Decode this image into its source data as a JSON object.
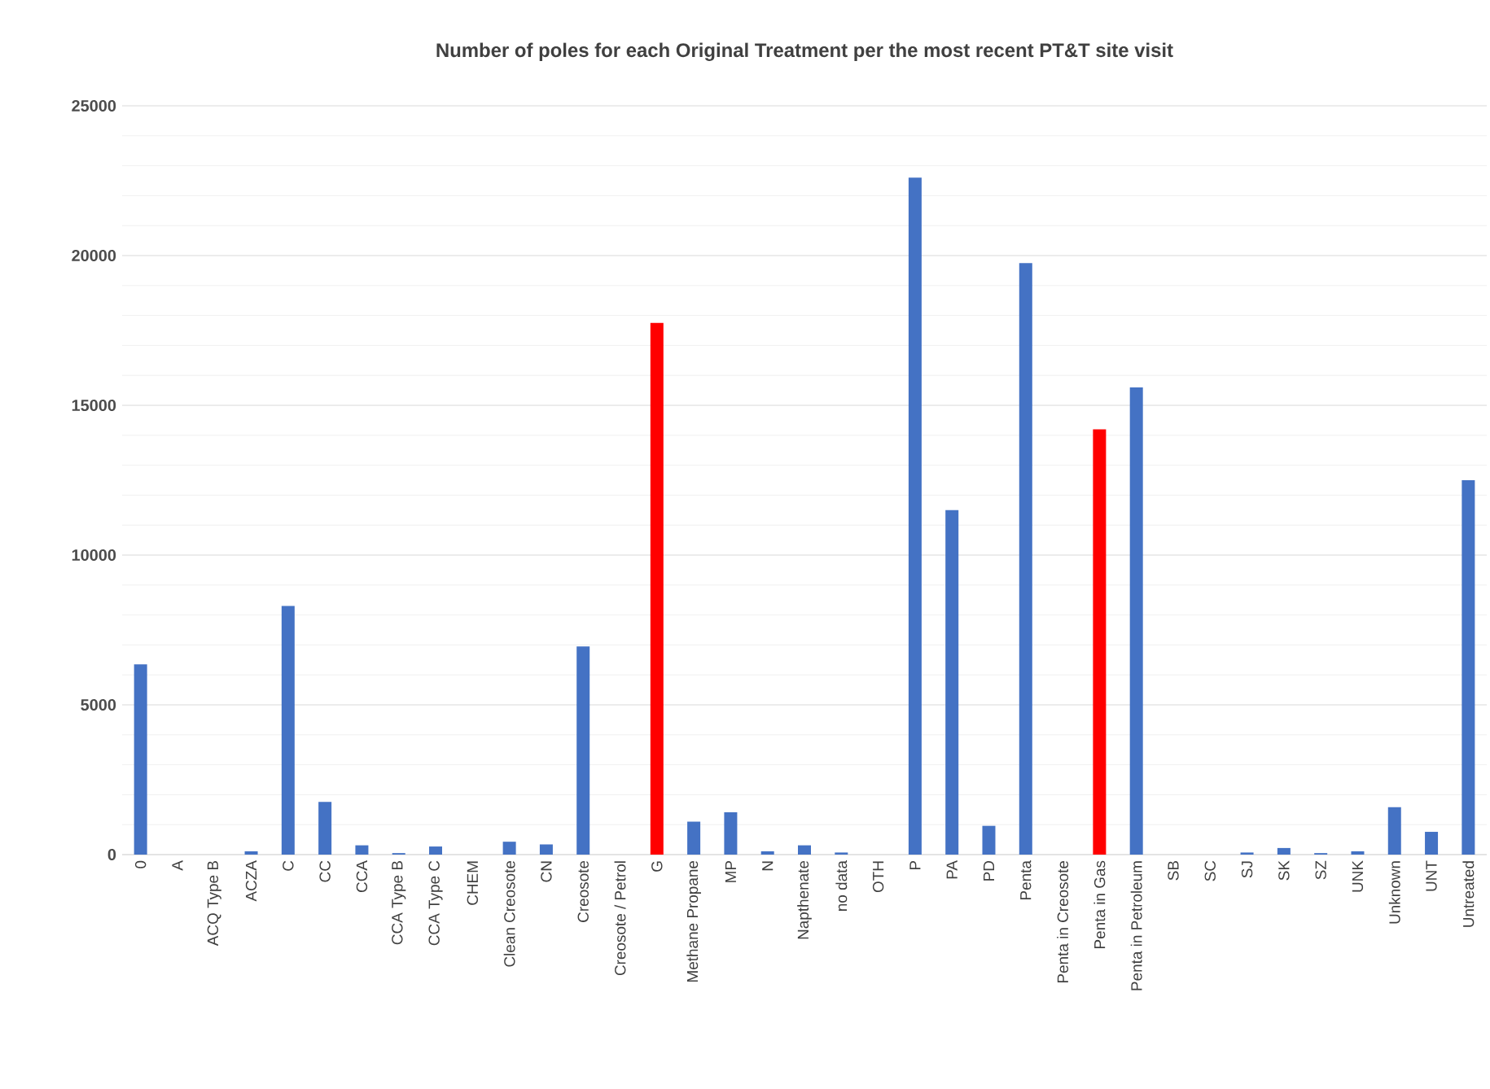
{
  "chart_data": {
    "type": "bar",
    "title": "Number of poles for each Original Treatment per the most recent PT&T site visit",
    "categories": [
      "0",
      "A",
      "ACQ Type B",
      "ACZA",
      "C",
      "CC",
      "CCA",
      "CCA Type B",
      "CCA Type C",
      "CHEM",
      "Clean Creosote",
      "CN",
      "Creosote",
      "Creosote / Petrol",
      "G",
      "Methane Propane",
      "MP",
      "N",
      "Napthenate",
      "no data",
      "OTH",
      "P",
      "PA",
      "PD",
      "Penta",
      "Penta in Creosote",
      "Penta in Gas",
      "Penta in Petroleum",
      "SB",
      "SC",
      "SJ",
      "SK",
      "SZ",
      "UNK",
      "Unknown",
      "UNT",
      "Untreated"
    ],
    "values": [
      6350,
      0,
      0,
      110,
      8300,
      1760,
      310,
      50,
      270,
      0,
      430,
      340,
      6950,
      0,
      17750,
      1100,
      1410,
      110,
      310,
      70,
      0,
      22600,
      11500,
      960,
      19750,
      0,
      14200,
      15600,
      0,
      0,
      70,
      220,
      50,
      110,
      1580,
      760,
      12500
    ],
    "colors": [
      "#4472c4",
      "#4472c4",
      "#4472c4",
      "#4472c4",
      "#4472c4",
      "#4472c4",
      "#4472c4",
      "#4472c4",
      "#4472c4",
      "#4472c4",
      "#4472c4",
      "#4472c4",
      "#4472c4",
      "#4472c4",
      "#ff0000",
      "#4472c4",
      "#4472c4",
      "#4472c4",
      "#4472c4",
      "#4472c4",
      "#4472c4",
      "#4472c4",
      "#4472c4",
      "#4472c4",
      "#4472c4",
      "#4472c4",
      "#ff0000",
      "#4472c4",
      "#4472c4",
      "#4472c4",
      "#4472c4",
      "#4472c4",
      "#4472c4",
      "#4472c4",
      "#4472c4",
      "#4472c4",
      "#4472c4"
    ],
    "ylim": [
      0,
      25000
    ],
    "yticks": [
      0,
      5000,
      10000,
      15000,
      20000,
      25000
    ],
    "grid": "y"
  }
}
